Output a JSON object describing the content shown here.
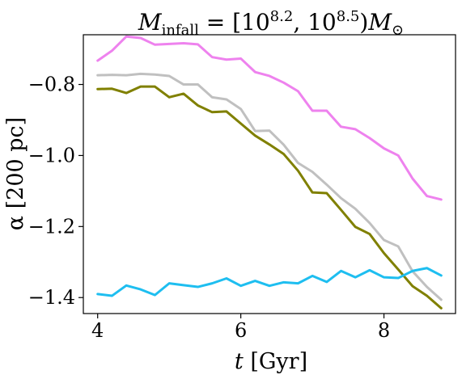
{
  "chart_data": {
    "type": "line",
    "title": "M_infall = [10^8.2, 10^8.5) M_⊙",
    "title_parts": {
      "m": "M",
      "infall_sub": "infall",
      "mid": " = [10",
      "exp1": "8.2",
      "comma": ", 10",
      "exp2": "8.5",
      "close": ")",
      "m2": "M",
      "sun_sub": "⊙"
    },
    "xlabel": "t [Gyr]",
    "xlabel_parts": {
      "var": "t",
      "unit": " [Gyr]"
    },
    "ylabel": "α [200 pc]",
    "xlim": [
      3.8,
      9.0
    ],
    "ylim": [
      -1.445,
      -0.66
    ],
    "xticks": [
      4,
      6,
      8
    ],
    "xtick_labels": [
      "4",
      "6",
      "8"
    ],
    "yticks": [
      -1.4,
      -1.2,
      -1.0,
      -0.8
    ],
    "ytick_labels": [
      "−1.4",
      "−1.2",
      "−1.0",
      "−0.8"
    ],
    "grid": false,
    "legend": "none",
    "x": [
      4.0,
      4.2,
      4.4,
      4.6,
      4.8,
      5.0,
      5.2,
      5.4,
      5.6,
      5.8,
      6.0,
      6.2,
      6.4,
      6.6,
      6.8,
      7.0,
      7.2,
      7.4,
      7.6,
      7.8,
      8.0,
      8.2,
      8.4,
      8.6,
      8.8
    ],
    "series": [
      {
        "color": "#ee82ee",
        "values": [
          -0.733,
          -0.705,
          -0.665,
          -0.669,
          -0.688,
          -0.686,
          -0.684,
          -0.687,
          -0.723,
          -0.73,
          -0.727,
          -0.765,
          -0.776,
          -0.795,
          -0.819,
          -0.874,
          -0.874,
          -0.919,
          -0.926,
          -0.951,
          -0.98,
          -1.0,
          -1.065,
          -1.114,
          -1.124
        ]
      },
      {
        "color": "#c0c0c0",
        "values": [
          -0.774,
          -0.773,
          -0.774,
          -0.77,
          -0.772,
          -0.776,
          -0.8,
          -0.8,
          -0.836,
          -0.842,
          -0.869,
          -0.931,
          -0.93,
          -0.97,
          -1.021,
          -1.046,
          -1.082,
          -1.12,
          -1.15,
          -1.19,
          -1.238,
          -1.256,
          -1.326,
          -1.37,
          -1.406
        ]
      },
      {
        "color": "#808000",
        "values": [
          -0.813,
          -0.812,
          -0.824,
          -0.806,
          -0.806,
          -0.836,
          -0.826,
          -0.859,
          -0.878,
          -0.876,
          -0.91,
          -0.944,
          -0.969,
          -0.996,
          -1.043,
          -1.104,
          -1.106,
          -1.153,
          -1.201,
          -1.221,
          -1.275,
          -1.321,
          -1.368,
          -1.395,
          -1.43
        ]
      },
      {
        "color": "#1ebef0",
        "values": [
          -1.39,
          -1.395,
          -1.366,
          -1.377,
          -1.393,
          -1.36,
          -1.365,
          -1.37,
          -1.36,
          -1.346,
          -1.367,
          -1.353,
          -1.367,
          -1.357,
          -1.36,
          -1.339,
          -1.356,
          -1.325,
          -1.343,
          -1.323,
          -1.343,
          -1.345,
          -1.325,
          -1.317,
          -1.338
        ]
      }
    ]
  }
}
